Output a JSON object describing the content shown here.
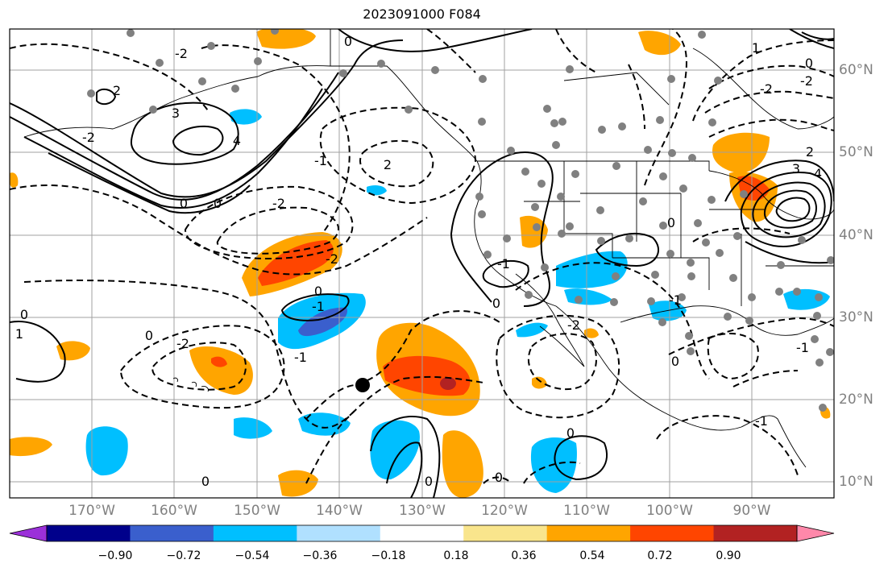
{
  "title": "2023091000 F084",
  "lon_labels": [
    "170°W",
    "160°W",
    "150°W",
    "140°W",
    "130°W",
    "120°W",
    "110°W",
    "100°W",
    "90°W"
  ],
  "lat_labels": [
    "60°N",
    "50°N",
    "40°N",
    "30°N",
    "20°N",
    "10°N"
  ],
  "colorbar": {
    "ticks": [
      "−0.90",
      "−0.72",
      "−0.54",
      "−0.36",
      "−0.18",
      "0.18",
      "0.36",
      "0.54",
      "0.72",
      "0.90"
    ],
    "colors": [
      "#9b30d9",
      "#00008b",
      "#3a5fcd",
      "#00bfff",
      "#b0e0ff",
      "#ffffff",
      "#f9e58c",
      "#ffa500",
      "#ff4500",
      "#b22222",
      "#ff88aa"
    ]
  },
  "contour_labels": [
    "0",
    "-2",
    "-2",
    "0",
    "2",
    "3",
    "4",
    "2",
    "0",
    "0",
    "-2",
    "-2",
    "-1",
    "0",
    "-1",
    "-1",
    "0",
    "-2",
    "0",
    "1",
    "-1",
    "0",
    "0",
    "-2",
    "-1",
    "0",
    "0",
    "-2",
    "-2",
    "1",
    "2",
    "3",
    "4",
    "-1",
    "0",
    "-1",
    "0",
    "0"
  ]
}
